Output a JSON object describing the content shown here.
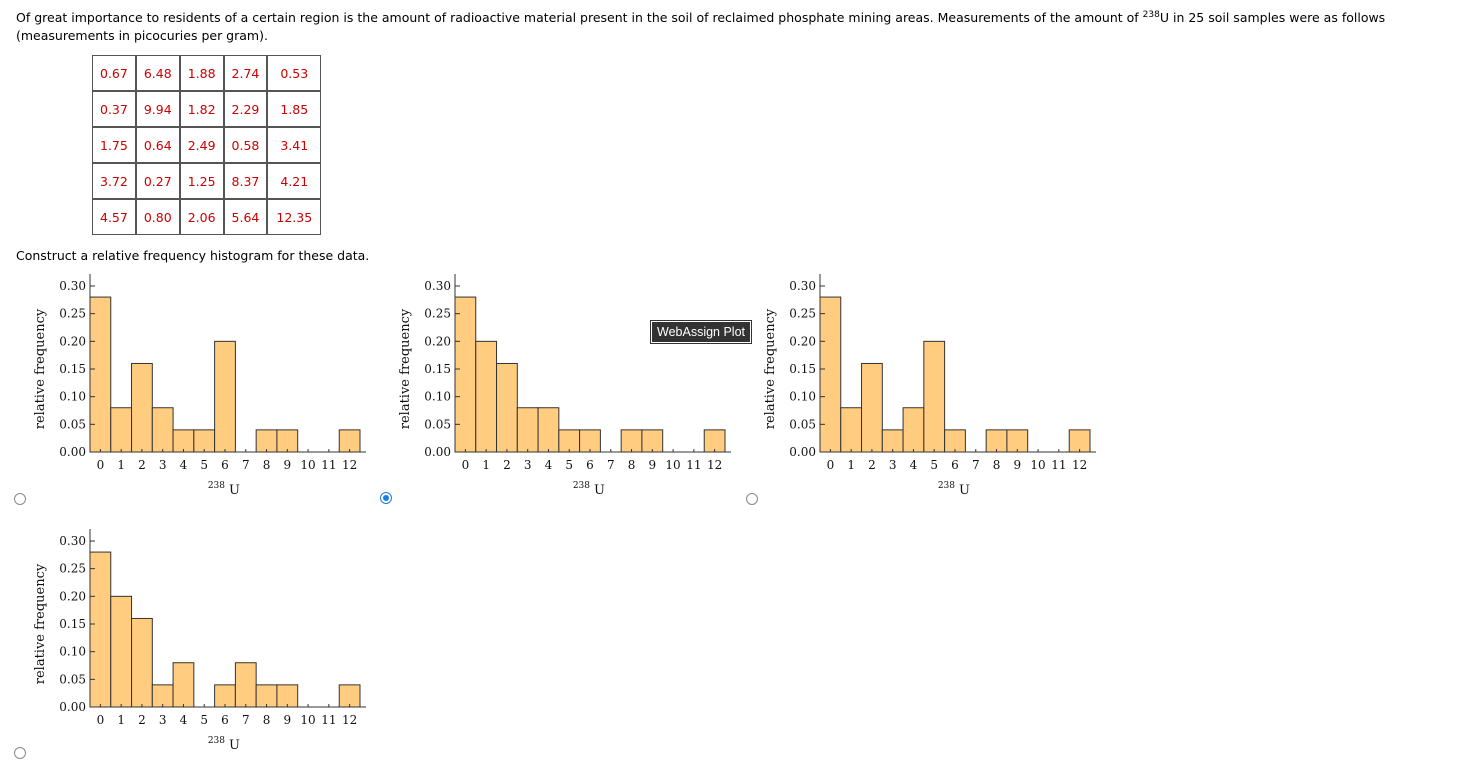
{
  "question": {
    "intro_before": "Of great importance to residents of a certain region is the amount of radioactive material present in the soil of reclaimed phosphate mining areas. Measurements of the amount of ",
    "isotope_superscript": "238",
    "isotope_symbol": "U",
    "intro_after": " in 25 soil samples were as follows (measurements in picocuries per gram).",
    "table": [
      [
        "0.67",
        "6.48",
        "1.88",
        "2.74",
        "0.53"
      ],
      [
        "0.37",
        "9.94",
        "1.82",
        "2.29",
        "1.85"
      ],
      [
        "1.75",
        "0.64",
        "2.49",
        "0.58",
        "3.41"
      ],
      [
        "3.72",
        "0.27",
        "1.25",
        "8.37",
        "4.21"
      ],
      [
        "4.57",
        "0.80",
        "2.06",
        "5.64",
        "12.35"
      ]
    ],
    "prompt": "Construct a relative frequency histogram for these data."
  },
  "tooltip": "WebAssign Plot",
  "selected_option": 1,
  "chart_data": [
    {
      "type": "bar",
      "option": "A",
      "x_tick_labels": [
        "0",
        "1",
        "2",
        "3",
        "4",
        "5",
        "6",
        "7",
        "8",
        "9",
        "10",
        "11",
        "12"
      ],
      "bin_edges": [
        0,
        1,
        2,
        3,
        4,
        5,
        6,
        7,
        8,
        9,
        10,
        11,
        12,
        13
      ],
      "values": [
        0.28,
        0.08,
        0.16,
        0.08,
        0.04,
        0.04,
        0.2,
        0.0,
        0.04,
        0.04,
        0.0,
        0.0,
        0.04
      ],
      "ylabel": "relative frequency",
      "xlabel_sup": "238",
      "xlabel_main": "U",
      "y_tick_labels": [
        "0.00",
        "0.05",
        "0.10",
        "0.15",
        "0.20",
        "0.25",
        "0.30"
      ],
      "ylim": [
        0,
        0.3
      ],
      "xlim": [
        0,
        13
      ],
      "bar_color": "#ffcc80"
    },
    {
      "type": "bar",
      "option": "B",
      "x_tick_labels": [
        "0",
        "1",
        "2",
        "3",
        "4",
        "5",
        "6",
        "7",
        "8",
        "9",
        "10",
        "11",
        "12"
      ],
      "bin_edges": [
        0,
        1,
        2,
        3,
        4,
        5,
        6,
        7,
        8,
        9,
        10,
        11,
        12,
        13
      ],
      "values": [
        0.28,
        0.2,
        0.16,
        0.08,
        0.08,
        0.04,
        0.04,
        0.0,
        0.04,
        0.04,
        0.0,
        0.0,
        0.04
      ],
      "ylabel": "relative frequency",
      "xlabel_sup": "238",
      "xlabel_main": "U",
      "y_tick_labels": [
        "0.00",
        "0.05",
        "0.10",
        "0.15",
        "0.20",
        "0.25",
        "0.30"
      ],
      "ylim": [
        0,
        0.3
      ],
      "xlim": [
        0,
        13
      ],
      "bar_color": "#ffcc80"
    },
    {
      "type": "bar",
      "option": "C",
      "x_tick_labels": [
        "0",
        "1",
        "2",
        "3",
        "4",
        "5",
        "6",
        "7",
        "8",
        "9",
        "10",
        "11",
        "12"
      ],
      "bin_edges": [
        0,
        1,
        2,
        3,
        4,
        5,
        6,
        7,
        8,
        9,
        10,
        11,
        12,
        13
      ],
      "values": [
        0.28,
        0.08,
        0.16,
        0.04,
        0.08,
        0.2,
        0.04,
        0.0,
        0.04,
        0.04,
        0.0,
        0.0,
        0.04
      ],
      "ylabel": "relative frequency",
      "xlabel_sup": "238",
      "xlabel_main": "U",
      "y_tick_labels": [
        "0.00",
        "0.05",
        "0.10",
        "0.15",
        "0.20",
        "0.25",
        "0.30"
      ],
      "ylim": [
        0,
        0.3
      ],
      "xlim": [
        0,
        13
      ],
      "bar_color": "#ffcc80"
    },
    {
      "type": "bar",
      "option": "D",
      "x_tick_labels": [
        "0",
        "1",
        "2",
        "3",
        "4",
        "5",
        "6",
        "7",
        "8",
        "9",
        "10",
        "11",
        "12"
      ],
      "bin_edges": [
        0,
        1,
        2,
        3,
        4,
        5,
        6,
        7,
        8,
        9,
        10,
        11,
        12,
        13
      ],
      "values": [
        0.28,
        0.2,
        0.16,
        0.04,
        0.08,
        0.0,
        0.04,
        0.08,
        0.04,
        0.04,
        0.0,
        0.0,
        0.04
      ],
      "ylabel": "relative frequency",
      "xlabel_sup": "238",
      "xlabel_main": "U",
      "y_tick_labels": [
        "0.00",
        "0.05",
        "0.10",
        "0.15",
        "0.20",
        "0.25",
        "0.30"
      ],
      "ylim": [
        0,
        0.3
      ],
      "xlim": [
        0,
        13
      ],
      "bar_color": "#ffcc80"
    }
  ]
}
